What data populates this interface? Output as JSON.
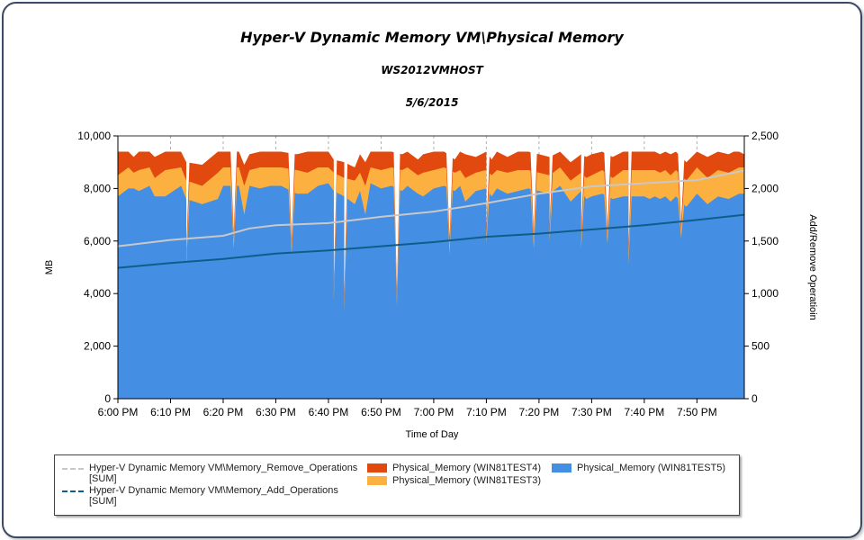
{
  "chart_data": {
    "type": "area",
    "title": "Hyper-V Dynamic Memory VM\\Physical Memory",
    "subtitle": "WS2012VMHOST",
    "date": "5/6/2015",
    "xlabel": "Time of Day",
    "ylabel": "MB",
    "y2label": "Add/Remove Operatioin",
    "ylim": [
      0,
      10000
    ],
    "y2lim": [
      0,
      2500
    ],
    "yticks": [
      "0",
      "2,000",
      "4,000",
      "6,000",
      "8,000",
      "10,000"
    ],
    "y2ticks": [
      "0",
      "500",
      "1,000",
      "1,500",
      "2,000",
      "2,500"
    ],
    "xticks": [
      "6:00 PM",
      "6:10 PM",
      "6:20 PM",
      "6:30 PM",
      "6:40 PM",
      "6:50 PM",
      "7:00 PM",
      "7:10 PM",
      "7:20 PM",
      "7:30 PM",
      "7:40 PM",
      "7:50 PM"
    ],
    "x_minutes_range": [
      0,
      119
    ],
    "grid": {
      "vertical_dashed": true,
      "horizontal": false
    },
    "legend_position": "bottom",
    "stacked": true,
    "series": [
      {
        "name": "Physical_Memory (WIN81TEST5)",
        "type": "area",
        "axis": "left",
        "color": "#448ee4",
        "x_minutes": [
          0,
          2,
          3,
          4,
          6,
          7,
          9,
          12,
          13,
          16,
          19,
          20,
          23,
          24,
          25,
          27,
          29,
          31,
          34,
          36,
          38,
          40,
          41,
          43,
          45,
          46,
          47,
          48,
          50,
          52,
          54,
          55,
          57,
          58,
          60,
          62,
          64,
          65,
          66,
          68,
          70,
          71,
          72,
          74,
          76,
          78,
          80,
          82,
          84,
          86,
          88,
          89,
          90,
          92,
          94,
          96,
          97,
          98,
          99,
          100,
          101,
          102,
          103,
          104,
          105,
          106,
          108,
          110,
          112,
          114,
          116,
          117,
          118,
          119
        ],
        "values": [
          7700,
          8000,
          8000,
          7900,
          8100,
          7700,
          7700,
          8100,
          7600,
          7400,
          7600,
          8100,
          8100,
          7000,
          8100,
          8000,
          8100,
          8100,
          7800,
          7800,
          8100,
          8200,
          7900,
          7700,
          7400,
          7900,
          7000,
          8200,
          8000,
          8100,
          7900,
          8100,
          7800,
          7700,
          8000,
          8100,
          7900,
          8100,
          7500,
          7900,
          8000,
          7700,
          8000,
          7800,
          7900,
          8000,
          7900,
          7800,
          8100,
          7500,
          7900,
          7600,
          7700,
          7800,
          7600,
          7700,
          7700,
          7700,
          7700,
          7700,
          7600,
          7700,
          7600,
          7700,
          7500,
          7700,
          7300,
          7800,
          7400,
          7700,
          7600,
          7700,
          7800,
          7800
        ]
      },
      {
        "name": "Physical_Memory (WIN81TEST3)",
        "type": "area",
        "axis": "left",
        "color": "#fbb040",
        "stack_top_values": [
          8500,
          8800,
          8600,
          8700,
          8800,
          8400,
          8700,
          8800,
          8300,
          8100,
          8600,
          8800,
          8800,
          8100,
          8700,
          8800,
          8800,
          8800,
          8700,
          8600,
          8800,
          8800,
          8600,
          8400,
          8300,
          8600,
          8100,
          8800,
          8700,
          8800,
          8700,
          8800,
          8500,
          8600,
          8700,
          8800,
          8600,
          8700,
          8400,
          8600,
          8700,
          8500,
          8700,
          8600,
          8700,
          8700,
          8600,
          8500,
          8800,
          8300,
          8600,
          8400,
          8500,
          8700,
          8400,
          8700,
          8700,
          8700,
          8700,
          8700,
          8700,
          8700,
          8600,
          8700,
          8500,
          8700,
          8300,
          8800,
          8400,
          8700,
          8600,
          8700,
          8800,
          8800
        ]
      },
      {
        "name": "Physical_Memory (WIN81TEST4)",
        "type": "area",
        "axis": "left",
        "color": "#e2490e",
        "stack_top_values": [
          9400,
          9400,
          9200,
          9400,
          9400,
          9200,
          9400,
          9400,
          9000,
          8900,
          9400,
          9400,
          9400,
          8900,
          9300,
          9400,
          9400,
          9400,
          9300,
          9400,
          9400,
          9400,
          9100,
          9000,
          8800,
          9300,
          9000,
          9400,
          9400,
          9400,
          9300,
          9400,
          9100,
          9300,
          9400,
          9400,
          9100,
          9400,
          9300,
          9200,
          9400,
          9100,
          9400,
          9200,
          9400,
          9400,
          9300,
          9200,
          9400,
          9000,
          9300,
          9200,
          9300,
          9400,
          9200,
          9400,
          9400,
          9400,
          9400,
          9400,
          9400,
          9400,
          9300,
          9400,
          9300,
          9400,
          9000,
          9400,
          9200,
          9400,
          9300,
          9400,
          9400,
          9300
        ]
      },
      {
        "name": "Hyper-V Dynamic Memory VM\\Memory_Remove_Operations [SUM]",
        "type": "line",
        "axis": "right",
        "color": "#c8c8c8",
        "x_minutes": [
          0,
          10,
          20,
          25,
          30,
          40,
          50,
          60,
          70,
          80,
          90,
          100,
          110,
          119
        ],
        "values": [
          1450,
          1510,
          1550,
          1620,
          1650,
          1670,
          1730,
          1780,
          1860,
          1950,
          2020,
          2050,
          2080,
          2170
        ]
      },
      {
        "name": "Hyper-V Dynamic Memory VM\\Memory_Add_Operations [SUM]",
        "type": "line",
        "axis": "right",
        "color": "#0f5e8a",
        "x_minutes": [
          0,
          10,
          20,
          30,
          40,
          50,
          60,
          70,
          80,
          90,
          100,
          110,
          119
        ],
        "values": [
          1245,
          1290,
          1330,
          1380,
          1410,
          1450,
          1490,
          1540,
          1570,
          1610,
          1650,
          1700,
          1750
        ]
      }
    ],
    "dips": [
      {
        "x_minutes": 13,
        "floor_mb": 5400
      },
      {
        "x_minutes": 22,
        "floor_mb": 6000
      },
      {
        "x_minutes": 33,
        "floor_mb": 5800
      },
      {
        "x_minutes": 41,
        "floor_mb": 4000
      },
      {
        "x_minutes": 43,
        "floor_mb": 3600
      },
      {
        "x_minutes": 53,
        "floor_mb": 3800
      },
      {
        "x_minutes": 63,
        "floor_mb": 5800
      },
      {
        "x_minutes": 70,
        "floor_mb": 6200
      },
      {
        "x_minutes": 79,
        "floor_mb": 6000
      },
      {
        "x_minutes": 82,
        "floor_mb": 6300
      },
      {
        "x_minutes": 88,
        "floor_mb": 6000
      },
      {
        "x_minutes": 93,
        "floor_mb": 6200
      },
      {
        "x_minutes": 97,
        "floor_mb": 5400
      },
      {
        "x_minutes": 107,
        "floor_mb": 6400
      }
    ]
  },
  "header": {
    "title": "Hyper-V Dynamic Memory VM\\Physical Memory",
    "subtitle": "WS2012VMHOST",
    "date": "5/6/2015"
  },
  "legend": {
    "items": [
      {
        "label": "Hyper-V Dynamic Memory VM\\Memory_Remove_Operations\n[SUM]",
        "kind": "line",
        "color": "#c8c8c8"
      },
      {
        "label": "Hyper-V Dynamic Memory VM\\Memory_Add_Operations\n[SUM]",
        "kind": "line",
        "color": "#0f5e8a"
      },
      {
        "label": "Physical_Memory (WIN81TEST4)",
        "kind": "swatch",
        "color": "#e2490e"
      },
      {
        "label": "Physical_Memory (WIN81TEST3)",
        "kind": "swatch",
        "color": "#fbb040"
      },
      {
        "label": "Physical_Memory (WIN81TEST5)",
        "kind": "swatch",
        "color": "#448ee4"
      }
    ]
  }
}
